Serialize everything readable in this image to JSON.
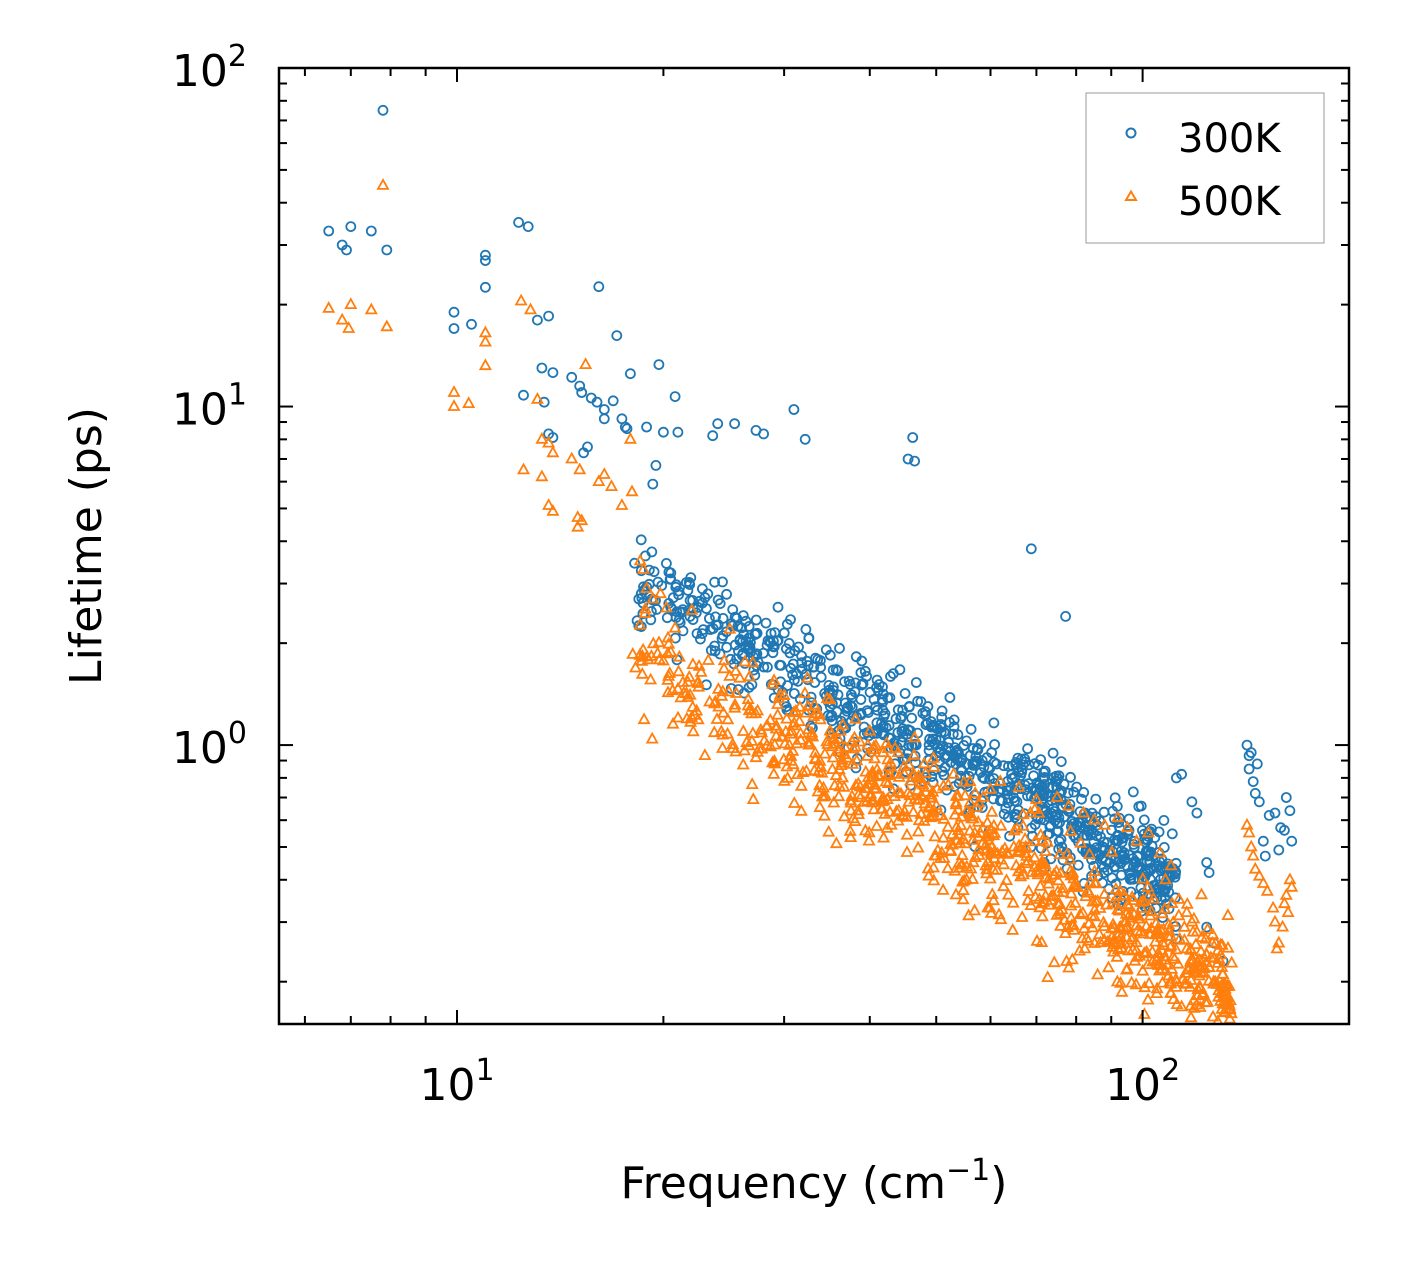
{
  "chart_data": {
    "type": "scatter",
    "title": "",
    "xlabel": "Frequency (cm",
    "xlabel_sup": "−1",
    "xlabel_tail": ")",
    "ylabel": "Lifetime (ps)",
    "xscale": "log",
    "yscale": "log",
    "xlim": [
      5.5,
      200
    ],
    "ylim": [
      0.15,
      100
    ],
    "x_ticks": [
      {
        "value": 10,
        "base": "10",
        "exp": "1"
      },
      {
        "value": 100,
        "base": "10",
        "exp": "2"
      }
    ],
    "y_ticks": [
      {
        "value": 1,
        "base": "10",
        "exp": "0"
      },
      {
        "value": 10,
        "base": "10",
        "exp": "1"
      },
      {
        "value": 100,
        "base": "10",
        "exp": "2"
      }
    ],
    "legend_position": "top-right",
    "series": [
      {
        "name": "300K",
        "marker": "circle",
        "color": "#1f77b4",
        "scatter_trend": {
          "x_range": [
            18,
            112
          ],
          "log_slope": -1.13,
          "intercept_log": 1.91,
          "spread": 0.19,
          "count": 900
        },
        "points": [
          [
            6.5,
            33
          ],
          [
            6.8,
            30
          ],
          [
            6.9,
            29
          ],
          [
            7.0,
            34
          ],
          [
            7.5,
            33
          ],
          [
            7.8,
            75
          ],
          [
            7.9,
            29
          ],
          [
            9.9,
            19
          ],
          [
            9.9,
            17
          ],
          [
            10.5,
            17.5
          ],
          [
            11.0,
            28
          ],
          [
            11.0,
            27
          ],
          [
            11.0,
            22.5
          ],
          [
            12.3,
            35
          ],
          [
            12.7,
            34
          ],
          [
            12.5,
            10.8
          ],
          [
            13.1,
            18
          ],
          [
            13.6,
            18.5
          ],
          [
            13.3,
            13
          ],
          [
            13.8,
            12.6
          ],
          [
            13.4,
            10.3
          ],
          [
            13.6,
            8.3
          ],
          [
            13.8,
            8.1
          ],
          [
            14.7,
            12.2
          ],
          [
            15.1,
            11.5
          ],
          [
            15.2,
            11.0
          ],
          [
            15.7,
            10.6
          ],
          [
            16.0,
            10.3
          ],
          [
            16.4,
            9.8
          ],
          [
            16.1,
            22.6
          ],
          [
            16.9,
            10.4
          ],
          [
            17.1,
            16.2
          ],
          [
            17.9,
            12.5
          ],
          [
            17.4,
            9.2
          ],
          [
            16.4,
            9.2
          ],
          [
            17.6,
            8.7
          ],
          [
            17.7,
            8.6
          ],
          [
            15.3,
            7.3
          ],
          [
            15.5,
            7.6
          ],
          [
            18.9,
            8.7
          ],
          [
            19.5,
            6.7
          ],
          [
            20.0,
            8.4
          ],
          [
            19.3,
            5.9
          ],
          [
            20.8,
            10.7
          ],
          [
            21.0,
            8.4
          ],
          [
            19.7,
            13.3
          ],
          [
            23.6,
            8.2
          ],
          [
            24.0,
            8.9
          ],
          [
            25.4,
            8.9
          ],
          [
            27.3,
            8.5
          ],
          [
            28.0,
            8.3
          ],
          [
            31.0,
            9.8
          ],
          [
            32.2,
            8.0
          ],
          [
            46.2,
            8.1
          ],
          [
            45.5,
            7.0
          ],
          [
            46.5,
            6.9
          ],
          [
            68.8,
            3.8
          ],
          [
            77.2,
            2.4
          ],
          [
            114,
            0.82
          ],
          [
            112,
            0.8
          ],
          [
            118,
            0.68
          ],
          [
            120,
            0.63
          ],
          [
            124,
            0.45
          ],
          [
            125,
            0.42
          ],
          [
            124,
            0.29
          ],
          [
            127,
            0.26
          ],
          [
            131,
            0.23
          ],
          [
            142,
            1.0
          ],
          [
            143,
            0.93
          ],
          [
            143,
            0.85
          ],
          [
            144,
            0.95
          ],
          [
            145,
            0.78
          ],
          [
            146,
            0.72
          ],
          [
            147,
            0.88
          ],
          [
            148,
            0.68
          ],
          [
            150,
            0.52
          ],
          [
            151,
            0.47
          ],
          [
            153,
            0.62
          ],
          [
            156,
            0.63
          ],
          [
            159,
            0.57
          ],
          [
            162,
            0.7
          ],
          [
            164,
            0.64
          ],
          [
            165,
            0.52
          ],
          [
            158,
            0.49
          ],
          [
            161,
            0.56
          ]
        ]
      },
      {
        "name": "500K",
        "marker": "triangle",
        "color": "#ff7f0e",
        "scatter_trend": {
          "x_range": [
            18,
            135
          ],
          "log_slope": -1.13,
          "intercept_log": 1.69,
          "spread": 0.22,
          "count": 900
        },
        "points": [
          [
            6.5,
            19.5
          ],
          [
            6.8,
            18
          ],
          [
            6.95,
            17
          ],
          [
            7.0,
            20
          ],
          [
            7.5,
            19.3
          ],
          [
            7.8,
            45
          ],
          [
            7.9,
            17.2
          ],
          [
            9.9,
            11
          ],
          [
            9.9,
            10
          ],
          [
            10.4,
            10.2
          ],
          [
            11.0,
            16.5
          ],
          [
            11.0,
            15.5
          ],
          [
            11.0,
            13.2
          ],
          [
            12.4,
            20.5
          ],
          [
            12.8,
            19.3
          ],
          [
            12.5,
            6.5
          ],
          [
            13.1,
            10.5
          ],
          [
            13.3,
            8
          ],
          [
            13.6,
            7.8
          ],
          [
            13.8,
            7.3
          ],
          [
            13.6,
            5.1
          ],
          [
            13.8,
            4.9
          ],
          [
            13.3,
            6.2
          ],
          [
            14.7,
            7.0
          ],
          [
            15.1,
            6.5
          ],
          [
            15.4,
            13.3
          ],
          [
            15.0,
            4.7
          ],
          [
            15.0,
            4.4
          ],
          [
            15.2,
            4.6
          ],
          [
            16.1,
            6.0
          ],
          [
            16.4,
            6.3
          ],
          [
            16.8,
            5.8
          ],
          [
            17.4,
            5.1
          ],
          [
            18.0,
            5.6
          ],
          [
            18.5,
            3.5
          ],
          [
            18.7,
            3.3
          ],
          [
            18.9,
            2.9
          ],
          [
            19.3,
            2.7
          ],
          [
            19.8,
            2.8
          ],
          [
            17.9,
            8.0
          ],
          [
            22.0,
            2.5
          ],
          [
            25.0,
            2.2
          ],
          [
            27.0,
            1.75
          ],
          [
            29.0,
            1.55
          ],
          [
            30.0,
            1.4
          ],
          [
            32.5,
            1.3
          ],
          [
            35.0,
            1.1
          ],
          [
            38.0,
            1.05
          ],
          [
            40.0,
            1.1
          ],
          [
            44.0,
            0.95
          ],
          [
            46.5,
            1.05
          ],
          [
            48.0,
            0.88
          ],
          [
            53.0,
            0.82
          ],
          [
            56.0,
            0.78
          ],
          [
            57.0,
            0.72
          ],
          [
            60.0,
            0.74
          ],
          [
            62.0,
            0.78
          ],
          [
            66.0,
            0.75
          ],
          [
            70.0,
            0.69
          ],
          [
            75.0,
            0.7
          ],
          [
            78.0,
            0.66
          ],
          [
            82.0,
            0.63
          ],
          [
            85.0,
            0.6
          ],
          [
            88.0,
            0.58
          ],
          [
            92.0,
            0.61
          ],
          [
            95.0,
            0.57
          ],
          [
            98.0,
            0.52
          ],
          [
            102.0,
            0.55
          ],
          [
            106.0,
            0.48
          ],
          [
            108.0,
            0.4
          ],
          [
            110.0,
            0.44
          ],
          [
            113.0,
            0.35
          ],
          [
            116.0,
            0.32
          ],
          [
            118.0,
            0.3
          ],
          [
            120.0,
            0.28
          ],
          [
            122.0,
            0.27
          ],
          [
            124.0,
            0.24
          ],
          [
            125.0,
            0.22
          ],
          [
            127.0,
            0.2
          ],
          [
            128.0,
            0.26
          ],
          [
            130.0,
            0.24
          ],
          [
            131.0,
            0.21
          ],
          [
            132.0,
            0.19
          ],
          [
            133.0,
            0.175
          ],
          [
            134.0,
            0.165
          ],
          [
            134.0,
            0.155
          ],
          [
            142,
            0.58
          ],
          [
            143,
            0.55
          ],
          [
            144,
            0.5
          ],
          [
            145,
            0.47
          ],
          [
            146,
            0.43
          ],
          [
            148,
            0.41
          ],
          [
            150,
            0.39
          ],
          [
            152,
            0.37
          ],
          [
            155,
            0.33
          ],
          [
            156,
            0.3
          ],
          [
            157,
            0.25
          ],
          [
            158,
            0.26
          ],
          [
            160,
            0.29
          ],
          [
            162,
            0.36
          ],
          [
            164,
            0.4
          ],
          [
            165,
            0.38
          ],
          [
            163,
            0.32
          ],
          [
            161,
            0.34
          ]
        ]
      }
    ]
  }
}
